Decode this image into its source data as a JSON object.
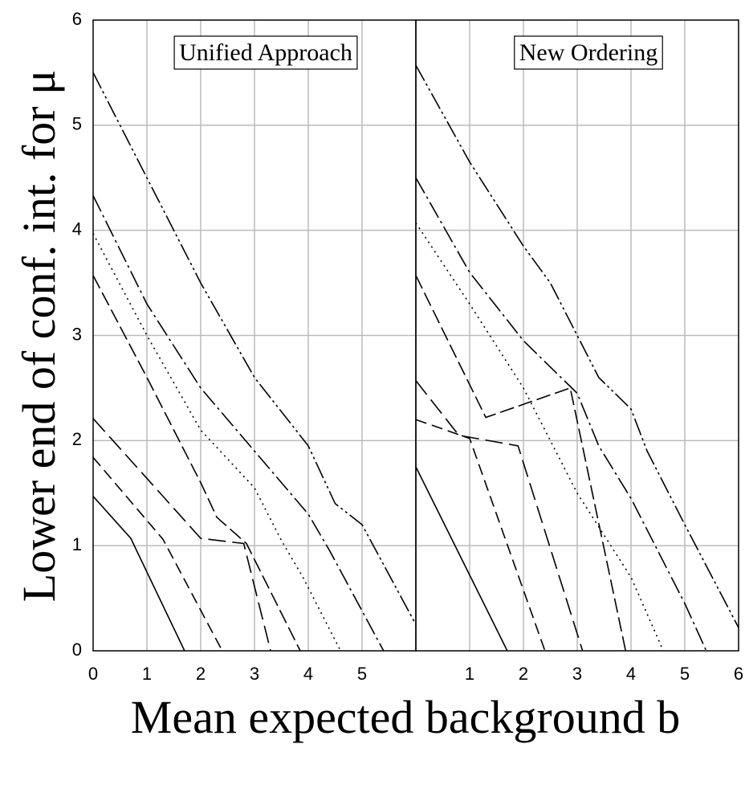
{
  "chart_data": [
    {
      "type": "line",
      "title": "Unified Approach",
      "xlabel": "Mean expected background b",
      "ylabel": "Lower end of conf. int. for μ",
      "xlim": [
        0,
        6
      ],
      "xticks": [
        0,
        1,
        2,
        3,
        4,
        5
      ],
      "ylim": [
        0,
        6
      ],
      "yticks": [
        0,
        1,
        2,
        3,
        4,
        5,
        6
      ],
      "grid": true,
      "series": [
        {
          "color": "#000000",
          "dash": "none",
          "x": [
            0,
            0.7,
            1.7
          ],
          "values": [
            1.47,
            1.07,
            0
          ]
        },
        {
          "color": "#000000",
          "dash": "14,7",
          "x": [
            0,
            1.3,
            2.4
          ],
          "values": [
            1.84,
            1.06,
            0
          ]
        },
        {
          "color": "#000000",
          "dash": "22,8",
          "x": [
            0,
            2,
            2.8,
            3.3
          ],
          "values": [
            2.21,
            1.07,
            1.02,
            0
          ]
        },
        {
          "color": "#000000",
          "dash": "18,6",
          "x": [
            0,
            1,
            2,
            2.3,
            2.85,
            3.85
          ],
          "values": [
            3.57,
            2.6,
            1.6,
            1.27,
            1.02,
            0
          ]
        },
        {
          "color": "#000000",
          "dash": "2,5",
          "x": [
            0,
            1,
            2,
            3,
            3.5,
            3.9,
            4.6
          ],
          "values": [
            3.97,
            3.0,
            2.1,
            1.55,
            1.05,
            0.7,
            0
          ]
        },
        {
          "color": "#000000",
          "dash": "22,5,3,5",
          "x": [
            0,
            1,
            2,
            3,
            4,
            4.4,
            5.4
          ],
          "values": [
            4.33,
            3.3,
            2.5,
            1.9,
            1.3,
            0.95,
            0
          ]
        },
        {
          "color": "#000000",
          "dash": "22,4,3,4,3,4",
          "x": [
            0,
            1,
            2,
            3,
            4,
            4.5,
            5,
            6
          ],
          "values": [
            5.5,
            4.5,
            3.5,
            2.6,
            1.95,
            1.4,
            1.2,
            0.25
          ]
        }
      ]
    },
    {
      "type": "line",
      "title": "New Ordering",
      "xlim": [
        0,
        6
      ],
      "xticks": [
        1,
        2,
        3,
        4,
        5,
        6
      ],
      "grid": true,
      "series": [
        {
          "color": "#000000",
          "dash": "none",
          "x": [
            0,
            1.7
          ],
          "values": [
            1.75,
            0
          ]
        },
        {
          "color": "#000000",
          "dash": "14,7",
          "x": [
            0,
            1,
            2.4
          ],
          "values": [
            2.2,
            2.02,
            0
          ]
        },
        {
          "color": "#000000",
          "dash": "22,8",
          "x": [
            0,
            0.8,
            1.9,
            3.1
          ],
          "values": [
            2.57,
            2.05,
            1.95,
            0
          ]
        },
        {
          "color": "#000000",
          "dash": "18,6",
          "x": [
            0,
            1.3,
            2.87,
            3.9
          ],
          "values": [
            3.57,
            2.22,
            2.5,
            0
          ]
        },
        {
          "color": "#000000",
          "dash": "2,5",
          "x": [
            0,
            1,
            2,
            3,
            4,
            4.6
          ],
          "values": [
            4.07,
            3.3,
            2.5,
            1.5,
            0.7,
            0
          ]
        },
        {
          "color": "#000000",
          "dash": "22,5,3,5",
          "x": [
            0,
            1,
            2,
            3,
            3.4,
            4,
            5,
            5.4
          ],
          "values": [
            4.5,
            3.6,
            2.95,
            2.45,
            1.95,
            1.45,
            0.45,
            0
          ]
        },
        {
          "color": "#000000",
          "dash": "22,4,3,4,3,4",
          "x": [
            0,
            1,
            2,
            2.5,
            3,
            3.4,
            4,
            4.3,
            5,
            6
          ],
          "values": [
            5.57,
            4.65,
            3.85,
            3.5,
            3.0,
            2.6,
            2.3,
            1.9,
            1.2,
            0.22
          ]
        }
      ]
    }
  ]
}
